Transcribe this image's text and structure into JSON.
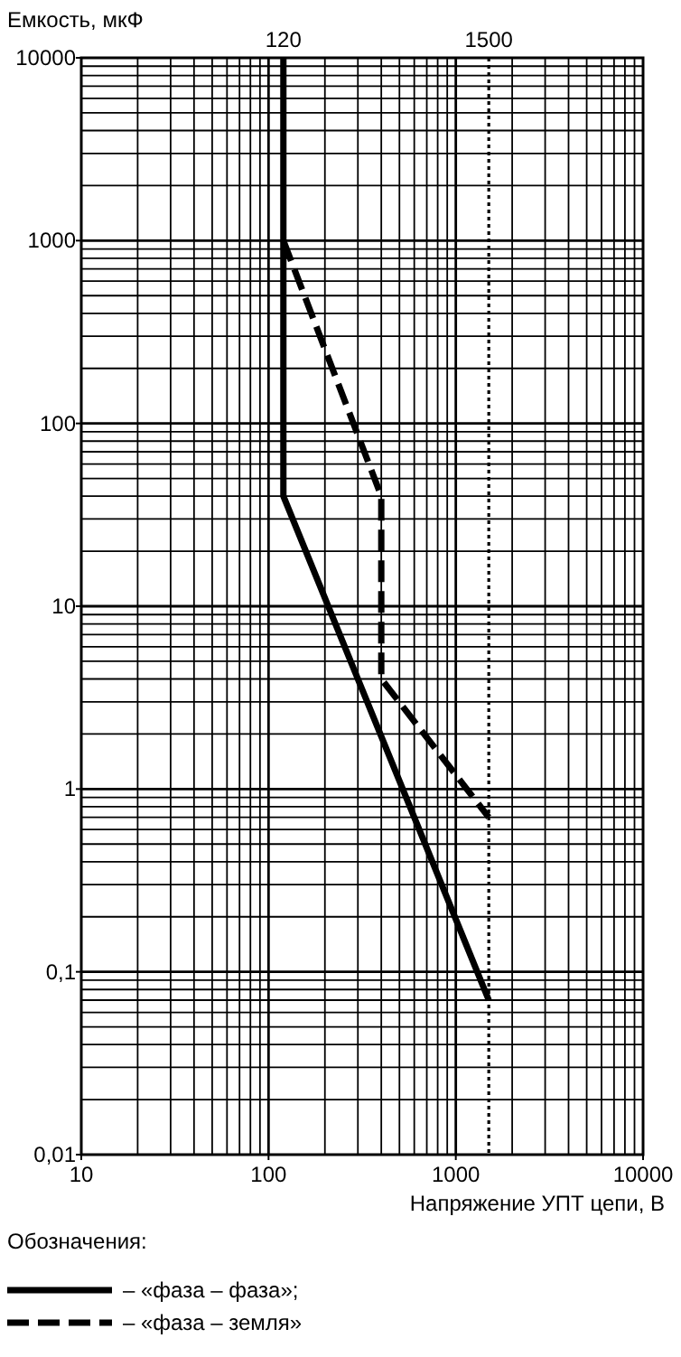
{
  "chart_data": {
    "type": "line",
    "ylabel": "Емкость, мкФ",
    "xlabel": "Напряжение УПТ цепи, В",
    "legend_title": "Обозначения:",
    "log": "xy",
    "grid": true,
    "legend": "bottom",
    "marker": "none",
    "xlim": [
      10,
      10000
    ],
    "xticks": [
      10,
      100,
      1000,
      10000
    ],
    "annotations": [
      {
        "text": "120",
        "x": 120,
        "y": 10000
      }
    ],
    "ylim": [
      0.01,
      10000
    ],
    "yticks": [
      {
        "value": 0.01,
        "label": "0,01"
      },
      {
        "value": 0.1,
        "label": "0,1"
      },
      1,
      10,
      100,
      1000,
      10000
    ],
    "ref_lines": [
      {
        "axis": "x",
        "value": 1500,
        "line_style": "dotted",
        "color": "#000000",
        "label": "1500"
      }
    ],
    "series": [
      {
        "name": "– «фаза – фаза»;",
        "color": "#000000",
        "line_style": "solid",
        "x": [
          120,
          120,
          1500
        ],
        "values": [
          10000,
          40,
          0.07
        ]
      },
      {
        "name": "– «фаза – земля»",
        "color": "#000000",
        "line_style": "dashed",
        "x": [
          120,
          400,
          400,
          1500
        ],
        "values": [
          1000,
          40,
          4,
          0.7
        ]
      }
    ]
  }
}
